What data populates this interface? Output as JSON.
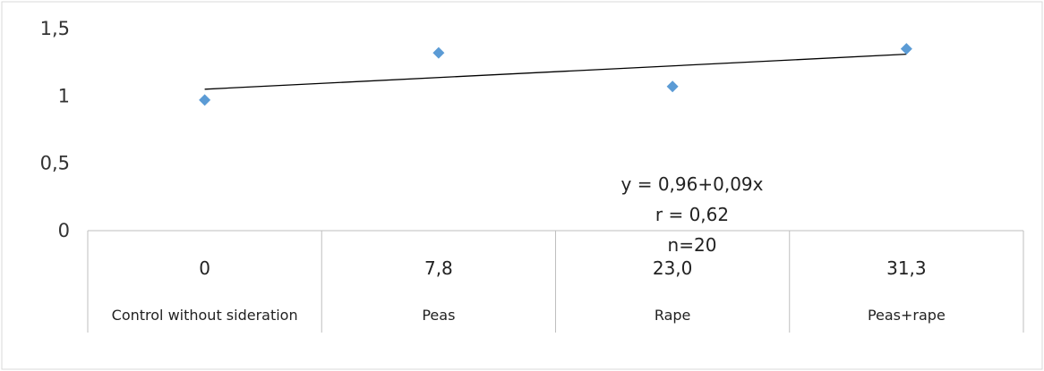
{
  "chart_data": {
    "type": "scatter",
    "title": "",
    "xlabel": "",
    "ylabel": "",
    "ylim": [
      0,
      1.5
    ],
    "yticks": [
      {
        "value": 0,
        "label": "0"
      },
      {
        "value": 0.5,
        "label": "0,5"
      },
      {
        "value": 1,
        "label": "1"
      },
      {
        "value": 1.5,
        "label": "1,5"
      }
    ],
    "categories": [
      {
        "value_label": "0",
        "name": "Control without sideration"
      },
      {
        "value_label": "7,8",
        "name": "Peas"
      },
      {
        "value_label": "23,0",
        "name": "Rape"
      },
      {
        "value_label": "31,3",
        "name": "Peas+rape"
      }
    ],
    "series": [
      {
        "x": [
          0,
          7.8,
          23.0,
          31.3
        ],
        "y": [
          0.97,
          1.32,
          1.07,
          1.35
        ]
      }
    ],
    "trendline": {
      "y_start": 1.05,
      "y_end": 1.31
    },
    "annotations": [
      "y = 0,96+0,09x",
      "r = 0,62",
      "n=20"
    ],
    "colors": {
      "marker": "#5B9BD5",
      "line": "#000000",
      "grid": "#BFBFBF"
    },
    "grid": false,
    "legend": "none"
  }
}
